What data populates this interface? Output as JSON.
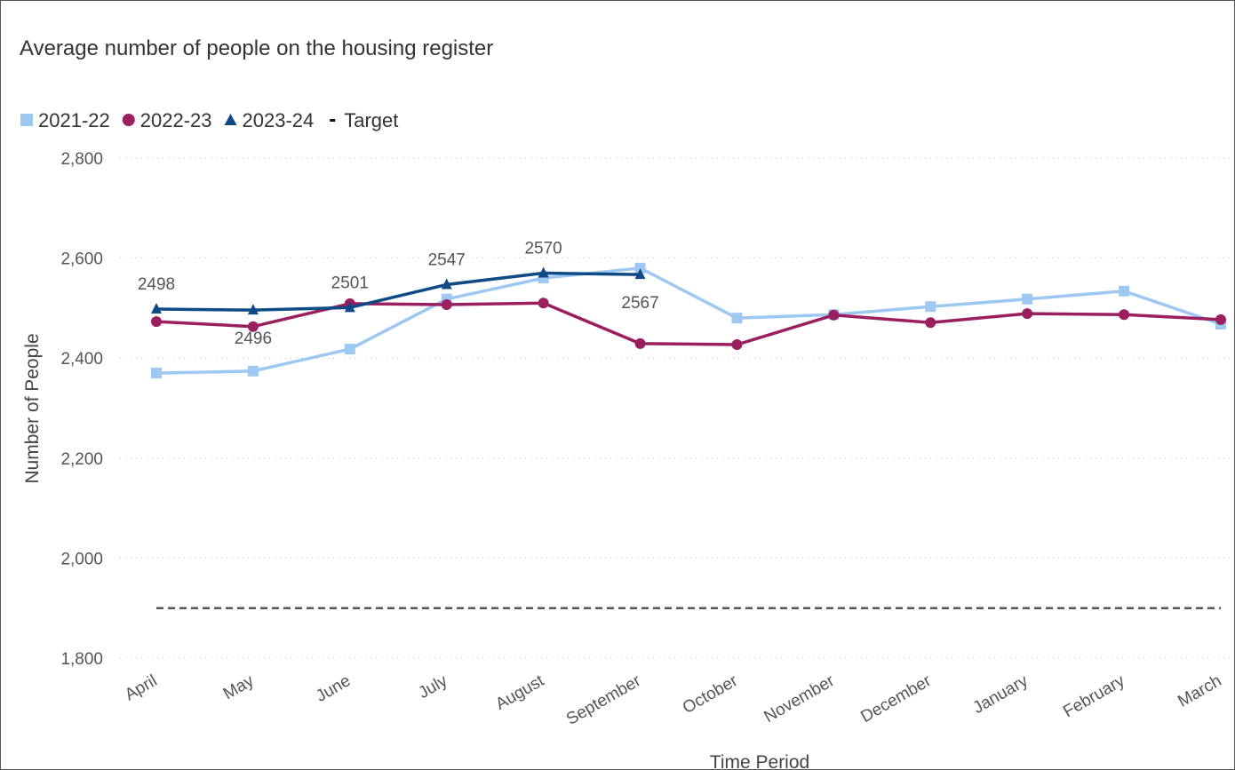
{
  "chart_data": {
    "type": "line",
    "title": "Average number of people on the housing register",
    "x_label": "Time Period",
    "y_label": "Number of People",
    "categories": [
      "April",
      "May",
      "June",
      "July",
      "August",
      "September",
      "October",
      "November",
      "December",
      "January",
      "February",
      "March"
    ],
    "series": [
      {
        "name": "2021-22",
        "color": "#9dc8f2",
        "marker": "square",
        "values": [
          2370,
          2374,
          2418,
          2518,
          2560,
          2580,
          2480,
          2487,
          2503,
          2518,
          2534,
          2468
        ]
      },
      {
        "name": "2022-23",
        "color": "#9b1f5f",
        "marker": "circle",
        "values": [
          2473,
          2463,
          2509,
          2507,
          2510,
          2429,
          2427,
          2486,
          2471,
          2489,
          2487,
          2477
        ]
      },
      {
        "name": "2023-24",
        "color": "#0e4a86",
        "marker": "triangle",
        "data_labels": true,
        "values": [
          2498,
          2496,
          2501,
          2547,
          2570,
          2567,
          null,
          null,
          null,
          null,
          null,
          null
        ]
      },
      {
        "name": "Target",
        "color": "#555555",
        "dashed": true,
        "values": [
          1900,
          1900,
          1900,
          1900,
          1900,
          1900,
          1900,
          1900,
          1900,
          1900,
          1900,
          1900
        ]
      }
    ],
    "ylim": [
      1800,
      2800
    ],
    "yticks": [
      {
        "value": 1800,
        "label": "1,800"
      },
      {
        "value": 2000,
        "label": "2,000"
      },
      {
        "value": 2200,
        "label": "2,200"
      },
      {
        "value": 2400,
        "label": "2,400"
      },
      {
        "value": 2600,
        "label": "2,600"
      },
      {
        "value": 2800,
        "label": "2,800"
      }
    ],
    "grid": true,
    "legend": "top-left"
  }
}
